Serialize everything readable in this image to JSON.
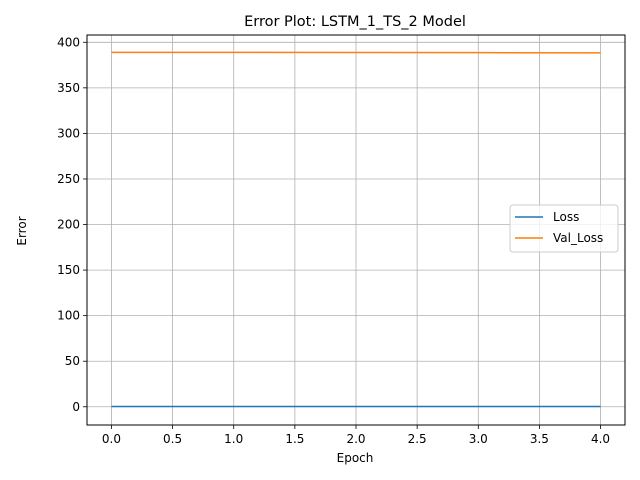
{
  "chart_data": {
    "type": "line",
    "title": "Error Plot: LSTM_1_TS_2 Model",
    "xlabel": "Epoch",
    "ylabel": "Error",
    "x": [
      0,
      1,
      2,
      3,
      4
    ],
    "xlim": [
      -0.2,
      4.2
    ],
    "ylim": [
      -20,
      408
    ],
    "xticks": [
      "0.0",
      "0.5",
      "1.0",
      "1.5",
      "2.0",
      "2.5",
      "3.0",
      "3.5",
      "4.0"
    ],
    "yticks": [
      "0",
      "50",
      "100",
      "150",
      "200",
      "250",
      "300",
      "350",
      "400"
    ],
    "grid": true,
    "legend_position": "center-right",
    "series": [
      {
        "name": "Loss",
        "color": "#1f77b4",
        "values": [
          0.3,
          0.3,
          0.3,
          0.3,
          0.3
        ]
      },
      {
        "name": "Val_Loss",
        "color": "#ff7f0e",
        "values": [
          389.0,
          388.9,
          388.8,
          388.6,
          388.4
        ]
      }
    ]
  }
}
